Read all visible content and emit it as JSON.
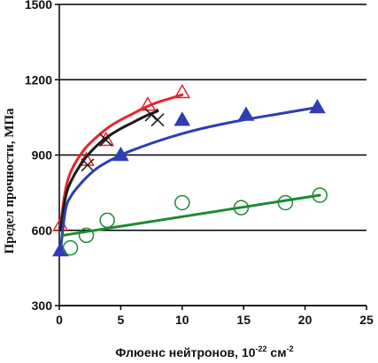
{
  "chart_data": {
    "type": "scatter",
    "xlabel": "Флюенс нейтронов, 10",
    "xlabel_exp": "-22",
    "xlabel_unit": " см",
    "xlabel_unit_exp": "-2",
    "ylabel": "Предел прочности, МПа",
    "xlim": [
      0,
      25
    ],
    "ylim": [
      300,
      1500
    ],
    "x_ticks": [
      "0",
      "5",
      "10",
      "15",
      "20",
      "25"
    ],
    "y_ticks": [
      "300",
      "600",
      "900",
      "1200",
      "1500"
    ],
    "x_tick_values": [
      0,
      5,
      10,
      15,
      20,
      25
    ],
    "y_tick_values": [
      300,
      600,
      900,
      1200,
      1500
    ],
    "grid": "horizontal",
    "legend": "none",
    "series": [
      {
        "color": "#e8252b",
        "marker": "triangle-open",
        "points": [
          [
            0.1,
            620
          ],
          [
            2.2,
            880
          ],
          [
            3.8,
            960
          ],
          [
            7.2,
            1100
          ],
          [
            10.0,
            1150
          ]
        ],
        "curve": [
          [
            0.1,
            620
          ],
          [
            0.5,
            760
          ],
          [
            1,
            840
          ],
          [
            2,
            920
          ],
          [
            3,
            970
          ],
          [
            4,
            1010
          ],
          [
            5,
            1040
          ],
          [
            6,
            1065
          ],
          [
            7,
            1090
          ],
          [
            8,
            1110
          ],
          [
            9,
            1125
          ],
          [
            10,
            1140
          ]
        ]
      },
      {
        "color": "#1a1a1a",
        "marker": "cross",
        "points": [
          [
            2.3,
            860
          ],
          [
            3.8,
            960
          ],
          [
            7.5,
            1060
          ],
          [
            8.0,
            1040
          ]
        ],
        "curve": [
          [
            0.1,
            600
          ],
          [
            0.5,
            730
          ],
          [
            1,
            800
          ],
          [
            2,
            880
          ],
          [
            3,
            935
          ],
          [
            4,
            975
          ],
          [
            5,
            1005
          ],
          [
            6,
            1030
          ],
          [
            7,
            1055
          ],
          [
            8,
            1075
          ]
        ]
      },
      {
        "color": "#2e3db5",
        "marker": "triangle-filled",
        "points": [
          [
            0.1,
            520
          ],
          [
            5.0,
            900
          ],
          [
            10.0,
            1040
          ],
          [
            15.2,
            1060
          ],
          [
            21.0,
            1090
          ]
        ],
        "curve": [
          [
            0.1,
            520
          ],
          [
            0.5,
            680
          ],
          [
            1,
            740
          ],
          [
            2,
            800
          ],
          [
            3,
            845
          ],
          [
            4,
            875
          ],
          [
            5,
            900
          ],
          [
            6,
            920
          ],
          [
            8,
            955
          ],
          [
            10,
            985
          ],
          [
            12,
            1010
          ],
          [
            15,
            1040
          ],
          [
            18,
            1065
          ],
          [
            21,
            1090
          ]
        ]
      },
      {
        "color": "#1e8a34",
        "marker": "circle-open",
        "points": [
          [
            0.9,
            530
          ],
          [
            2.2,
            580
          ],
          [
            3.9,
            640
          ],
          [
            10.0,
            710
          ],
          [
            14.8,
            690
          ],
          [
            18.4,
            710
          ],
          [
            21.2,
            740
          ]
        ],
        "curve": [
          [
            0.3,
            580
          ],
          [
            21.2,
            740
          ]
        ]
      }
    ]
  }
}
